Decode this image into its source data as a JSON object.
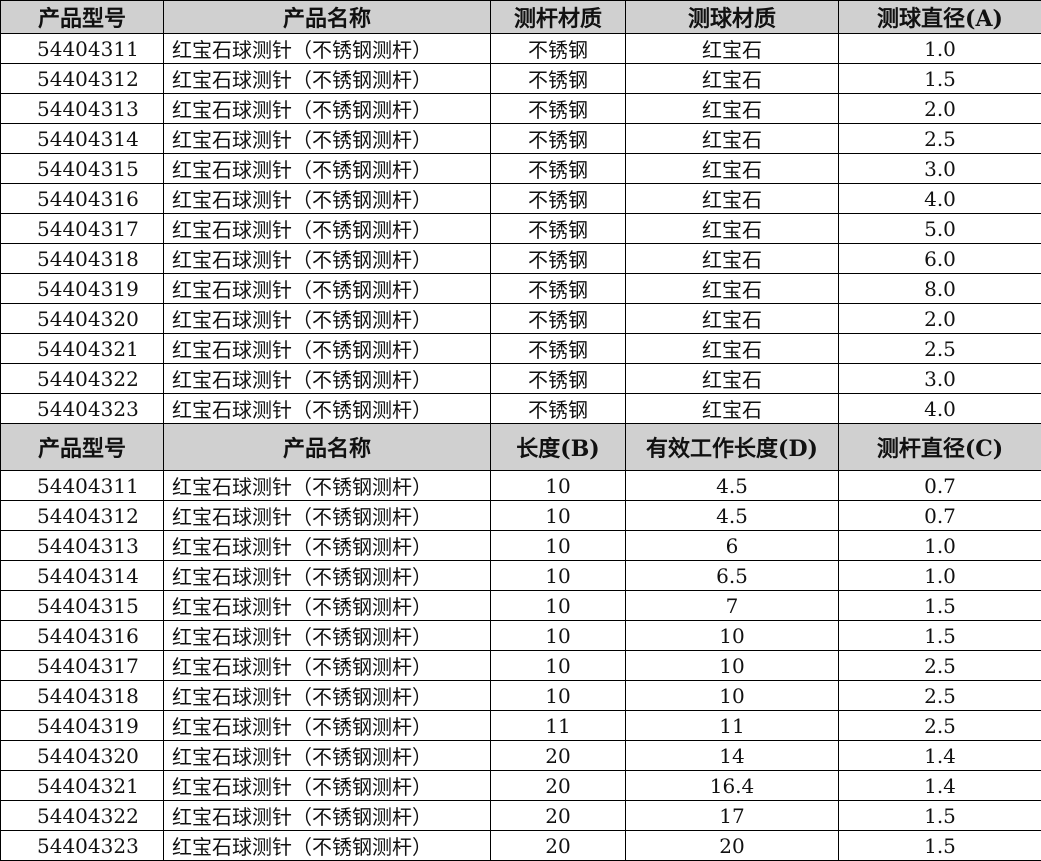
{
  "table1": {
    "headers": [
      "产品型号",
      "产品名称",
      "测杆材质",
      "测球材质",
      "测球直径(A)"
    ],
    "rows": [
      [
        "54404311",
        "红宝石球测针（不锈钢测杆）",
        "不锈钢",
        "红宝石",
        "1.0"
      ],
      [
        "54404312",
        "红宝石球测针（不锈钢测杆）",
        "不锈钢",
        "红宝石",
        "1.5"
      ],
      [
        "54404313",
        "红宝石球测针（不锈钢测杆）",
        "不锈钢",
        "红宝石",
        "2.0"
      ],
      [
        "54404314",
        "红宝石球测针（不锈钢测杆）",
        "不锈钢",
        "红宝石",
        "2.5"
      ],
      [
        "54404315",
        "红宝石球测针（不锈钢测杆）",
        "不锈钢",
        "红宝石",
        "3.0"
      ],
      [
        "54404316",
        "红宝石球测针（不锈钢测杆）",
        "不锈钢",
        "红宝石",
        "4.0"
      ],
      [
        "54404317",
        "红宝石球测针（不锈钢测杆）",
        "不锈钢",
        "红宝石",
        "5.0"
      ],
      [
        "54404318",
        "红宝石球测针（不锈钢测杆）",
        "不锈钢",
        "红宝石",
        "6.0"
      ],
      [
        "54404319",
        "红宝石球测针（不锈钢测杆）",
        "不锈钢",
        "红宝石",
        "8.0"
      ],
      [
        "54404320",
        "红宝石球测针（不锈钢测杆）",
        "不锈钢",
        "红宝石",
        "2.0"
      ],
      [
        "54404321",
        "红宝石球测针（不锈钢测杆）",
        "不锈钢",
        "红宝石",
        "2.5"
      ],
      [
        "54404322",
        "红宝石球测针（不锈钢测杆）",
        "不锈钢",
        "红宝石",
        "3.0"
      ],
      [
        "54404323",
        "红宝石球测针（不锈钢测杆）",
        "不锈钢",
        "红宝石",
        "4.0"
      ]
    ]
  },
  "table2": {
    "headers": [
      "产品型号",
      "产品名称",
      "长度(B)",
      "有效工作长度(D)",
      "测杆直径(C)"
    ],
    "rows": [
      [
        "54404311",
        "红宝石球测针（不锈钢测杆）",
        "10",
        "4.5",
        "0.7"
      ],
      [
        "54404312",
        "红宝石球测针（不锈钢测杆）",
        "10",
        "4.5",
        "0.7"
      ],
      [
        "54404313",
        "红宝石球测针（不锈钢测杆）",
        "10",
        "6",
        "1.0"
      ],
      [
        "54404314",
        "红宝石球测针（不锈钢测杆）",
        "10",
        "6.5",
        "1.0"
      ],
      [
        "54404315",
        "红宝石球测针（不锈钢测杆）",
        "10",
        "7",
        "1.5"
      ],
      [
        "54404316",
        "红宝石球测针（不锈钢测杆）",
        "10",
        "10",
        "1.5"
      ],
      [
        "54404317",
        "红宝石球测针（不锈钢测杆）",
        "10",
        "10",
        "2.5"
      ],
      [
        "54404318",
        "红宝石球测针（不锈钢测杆）",
        "10",
        "10",
        "2.5"
      ],
      [
        "54404319",
        "红宝石球测针（不锈钢测杆）",
        "11",
        "11",
        "2.5"
      ],
      [
        "54404320",
        "红宝石球测针（不锈钢测杆）",
        "20",
        "14",
        "1.4"
      ],
      [
        "54404321",
        "红宝石球测针（不锈钢测杆）",
        "20",
        "16.4",
        "1.4"
      ],
      [
        "54404322",
        "红宝石球测针（不锈钢测杆）",
        "20",
        "17",
        "1.5"
      ],
      [
        "54404323",
        "红宝石球测针（不锈钢测杆）",
        "20",
        "20",
        "1.5"
      ]
    ]
  },
  "colors": {
    "header_bg": "#d0d0d0",
    "border": "#000000"
  }
}
